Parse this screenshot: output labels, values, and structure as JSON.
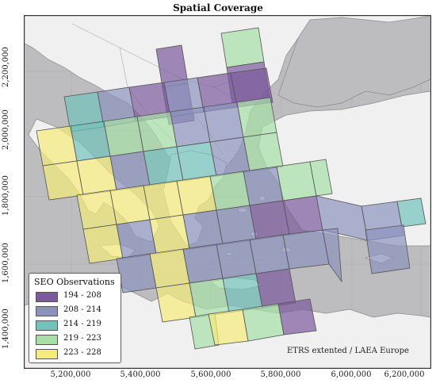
{
  "title": "Spatial Coverage",
  "x_ticks": [
    "5,200,000",
    "5,400,000",
    "5,600,000",
    "5,800,000",
    "6,000,000",
    "6,200,000"
  ],
  "y_ticks": [
    "2,200,000",
    "2,000,000",
    "1,800,000",
    "1,600,000",
    "1,400,000"
  ],
  "legend": {
    "title": "SEO Observations",
    "items": [
      {
        "label": "194 - 208",
        "color": "#7b5a9c"
      },
      {
        "label": "208 - 214",
        "color": "#8b93bd"
      },
      {
        "label": "214 - 219",
        "color": "#72c3bb"
      },
      {
        "label": "219 - 223",
        "color": "#a6e0a6"
      },
      {
        "label": "223 - 228",
        "color": "#f4eb79"
      }
    ]
  },
  "crs_label": "ETRS extented / LAEA Europe",
  "colors": {
    "sea": "#bdbdbf",
    "land": "#f0f0f0",
    "coast": "#8a8a8a"
  }
}
